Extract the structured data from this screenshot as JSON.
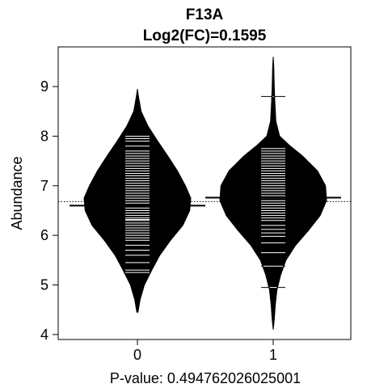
{
  "chart_data": {
    "type": "beanplot",
    "title": "F13A",
    "subtitle": "Log2(FC)=0.1595",
    "xlabel": "P-value: 0.494762026025001",
    "ylabel": "Abundance",
    "categories": [
      "0",
      "1"
    ],
    "ylim": [
      3.9,
      9.8
    ],
    "yticks": [
      4,
      5,
      6,
      7,
      8,
      9
    ],
    "overall_mean": 6.68,
    "group_means": [
      6.6,
      6.76
    ],
    "grid": false,
    "series": [
      {
        "name": "0",
        "density": [
          [
            4.45,
            0.01
          ],
          [
            4.7,
            0.05
          ],
          [
            5.0,
            0.13
          ],
          [
            5.3,
            0.27
          ],
          [
            5.6,
            0.42
          ],
          [
            5.9,
            0.62
          ],
          [
            6.2,
            0.85
          ],
          [
            6.5,
            0.98
          ],
          [
            6.75,
            1.0
          ],
          [
            7.0,
            0.9
          ],
          [
            7.3,
            0.75
          ],
          [
            7.6,
            0.57
          ],
          [
            7.9,
            0.38
          ],
          [
            8.2,
            0.2
          ],
          [
            8.5,
            0.07
          ],
          [
            8.8,
            0.02
          ],
          [
            8.95,
            0.0
          ]
        ],
        "observations": [
          5.25,
          5.3,
          5.45,
          5.6,
          5.7,
          5.8,
          5.9,
          5.95,
          6.0,
          6.05,
          6.1,
          6.15,
          6.2,
          6.25,
          6.3,
          6.32,
          6.35,
          6.4,
          6.45,
          6.5,
          6.55,
          6.6,
          6.65,
          6.7,
          6.75,
          6.8,
          6.85,
          6.9,
          6.95,
          7.0,
          7.05,
          7.1,
          7.15,
          7.2,
          7.25,
          7.3,
          7.35,
          7.4,
          7.45,
          7.5,
          7.55,
          7.6,
          7.65,
          7.7,
          7.8,
          7.9,
          7.95,
          8.0
        ]
      },
      {
        "name": "1",
        "density": [
          [
            4.1,
            0.0
          ],
          [
            4.3,
            0.02
          ],
          [
            4.6,
            0.04
          ],
          [
            4.9,
            0.07
          ],
          [
            5.2,
            0.14
          ],
          [
            5.5,
            0.24
          ],
          [
            5.8,
            0.42
          ],
          [
            6.1,
            0.66
          ],
          [
            6.4,
            0.88
          ],
          [
            6.7,
            1.0
          ],
          [
            7.0,
            0.98
          ],
          [
            7.3,
            0.83
          ],
          [
            7.6,
            0.55
          ],
          [
            7.8,
            0.32
          ],
          [
            8.0,
            0.12
          ],
          [
            8.3,
            0.05
          ],
          [
            8.7,
            0.03
          ],
          [
            9.0,
            0.02
          ],
          [
            9.4,
            0.01
          ],
          [
            9.6,
            0.0
          ]
        ],
        "observations": [
          4.95,
          5.38,
          5.65,
          5.85,
          5.98,
          6.05,
          6.12,
          6.2,
          6.3,
          6.35,
          6.4,
          6.45,
          6.5,
          6.55,
          6.6,
          6.65,
          6.7,
          6.75,
          6.8,
          6.85,
          6.9,
          6.95,
          7.0,
          7.05,
          7.1,
          7.15,
          7.2,
          7.25,
          7.3,
          7.35,
          7.4,
          7.45,
          7.5,
          7.55,
          7.6,
          7.65,
          7.7,
          7.75,
          8.8
        ]
      }
    ]
  }
}
